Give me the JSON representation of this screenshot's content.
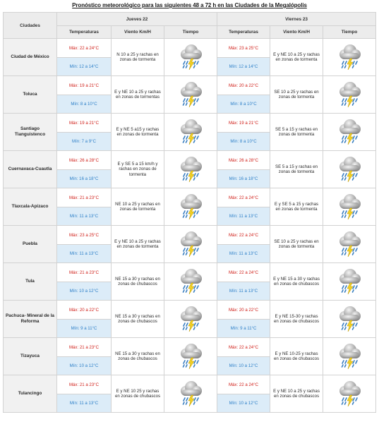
{
  "title": "Pronóstico meteorológico para las siguientes 48 a 72 h en las Ciudades de la Megalópolis",
  "header": {
    "cities_label": "Ciudades",
    "days": [
      {
        "label": "Jueves 22",
        "temp_label": "Temperaturas",
        "wind_label": "Viento Km/H",
        "weather_label": "Tiempo"
      },
      {
        "label": "Viernes 23",
        "temp_label": "Temperaturas",
        "wind_label": "Viento Km/H",
        "weather_label": "Tiempo"
      }
    ]
  },
  "weather_icon": "storm-cloud-rain-lightning-icon",
  "colors": {
    "max": "#d0201a",
    "min": "#2f80c8",
    "min_bg": "#dcecf8"
  },
  "rows": [
    {
      "city": "Ciudad de México",
      "d1": {
        "max": "Máx: 22 a 24°C",
        "min": "Mín: 12 a 14°C",
        "wind": "N 10 a 25 y rachas en zonas de tormenta"
      },
      "d2": {
        "max": "Máx: 23 a 25°C",
        "min": "Mín: 12 a 14°C",
        "wind": "E y NE 10 a 25 y rachas en zonas de tormenta"
      }
    },
    {
      "city": "Toluca",
      "d1": {
        "max": "Máx: 19 a 21°C",
        "min": "Mín: 8 a 10°C",
        "wind": "E y NE 10 a 25 y rachas en zonas de tormentas"
      },
      "d2": {
        "max": "Máx: 20 a 22°C",
        "min": "Mín: 8 a 10°C",
        "wind": "SE 10 a 25 y rachas en zonas de tormenta"
      }
    },
    {
      "city": "Santiago Tianguistenco",
      "d1": {
        "max": "Máx: 19 a 21°C",
        "min": "Mín: 7 a 9°C",
        "wind": "E y NE 5 a15 y rachas en zonas de tormenta"
      },
      "d2": {
        "max": "Máx: 19 a 21°C",
        "min": "Mín: 8 a 10°C",
        "wind": "SE 5 a 15 y rachas en zonas de tormenta"
      }
    },
    {
      "city": "Cuernavaca-Cuautla",
      "d1": {
        "max": "Máx: 26 a 28°C",
        "min": "Mín: 16 a 18°C",
        "wind": "E y SE 5 a 15 km/h y rachas en zonas de tormenta"
      },
      "d2": {
        "max": "Máx: 26 a 28°C",
        "min": "Mín: 16 a 18°C",
        "wind": "SE 5 a 15 y rachas en zonas de tormenta"
      }
    },
    {
      "city": "Tlaxcala-Apizaco",
      "d1": {
        "max": "Máx: 21 a 23°C",
        "min": "Mín: 11 a 13°C",
        "wind": "NE 10 a 25 y rachas en zonas de tormenta"
      },
      "d2": {
        "max": "Máx: 22 a 24°C",
        "min": "Mín: 11 a 13°C",
        "wind": "E y SE 5 a 15 y rachas en zonas de tormenta"
      }
    },
    {
      "city": "Puebla",
      "d1": {
        "max": "Máx: 23 a 25°C",
        "min": "Mín: 11 a 13°C",
        "wind": "E y NE 10 a 25 y rachas en zonas de tormenta"
      },
      "d2": {
        "max": "Máx: 22 a 24°C",
        "min": "Mín: 11 a 13°C",
        "wind": "SE 10 a 25 y rachas en zonas de tormenta"
      }
    },
    {
      "city": "Tula",
      "d1": {
        "max": "Máx: 21 a 23°C",
        "min": "Mín: 10 a 12°C",
        "wind": "NE 15 a 30 y rachas en zonas de chubascos"
      },
      "d2": {
        "max": "Máx: 22 a 24°C",
        "min": "Mín: 11 a 13°C",
        "wind": "E y NE 15 a 30 y rachas en zonas de chubascos"
      }
    },
    {
      "city": "Pachuca- Mineral de la Reforma",
      "d1": {
        "max": "Máx: 20 a 22°C",
        "min": "Mín: 9 a 11°C",
        "wind": "NE 15 a 30 y rachas en zonas de chubascos"
      },
      "d2": {
        "max": "Máx: 20 a 22°C",
        "min": "Mín: 9 a 11°C",
        "wind": "E y NE 15-30 y rachas en zonas de chubascos"
      }
    },
    {
      "city": "Tizayuca",
      "d1": {
        "max": "Máx: 21 a 23°C",
        "min": "Mín: 10 a 12°C",
        "wind": "NE 15 a 30 y rachas en zonas de chubascos"
      },
      "d2": {
        "max": "Máx: 22 a 24°C",
        "min": "Mín: 10 a 12°C",
        "wind": "E y NE 10-25 y rachas en zonas de chubascos"
      }
    },
    {
      "city": "Tulancingo",
      "d1": {
        "max": "Máx: 21 a 23°C",
        "min": "Mín: 11 a 13°C",
        "wind": "E y NE 10 25 y rachas en zonas de chubascos"
      },
      "d2": {
        "max": "Máx: 22 a 24°C",
        "min": "Mín: 10 a 12°C",
        "wind": "E y NE 10 a 25 y rachas en zonas de chubascos"
      }
    }
  ]
}
